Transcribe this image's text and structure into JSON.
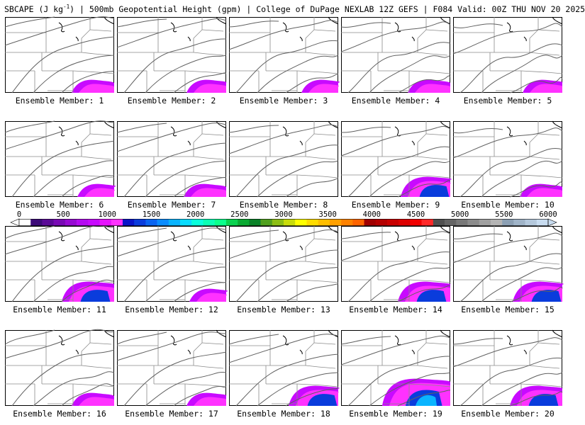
{
  "header": {
    "title_part1": "SBCAPE (J kg",
    "title_sup": "-1",
    "title_part2": ") | 500mb Geopotential Height (gpm) | College of DuPage NEXLAB 12Z GEFS | F084 Valid: 00Z THU NOV 20 2025"
  },
  "label_prefix": "Ensemble Member: ",
  "members": [
    {
      "id": "1",
      "cape": "weak"
    },
    {
      "id": "2",
      "cape": "weak"
    },
    {
      "id": "3",
      "cape": "weak"
    },
    {
      "id": "4",
      "cape": "weak"
    },
    {
      "id": "5",
      "cape": "weak"
    },
    {
      "id": "6",
      "cape": "weak"
    },
    {
      "id": "7",
      "cape": "weak"
    },
    {
      "id": "8",
      "cape": "none"
    },
    {
      "id": "9",
      "cape": "moderate"
    },
    {
      "id": "10",
      "cape": "weak"
    },
    {
      "id": "11",
      "cape": "moderate"
    },
    {
      "id": "12",
      "cape": "weak"
    },
    {
      "id": "13",
      "cape": "none"
    },
    {
      "id": "14",
      "cape": "moderate"
    },
    {
      "id": "15",
      "cape": "moderate"
    },
    {
      "id": "16",
      "cape": "weak"
    },
    {
      "id": "17",
      "cape": "weak"
    },
    {
      "id": "18",
      "cape": "moderate"
    },
    {
      "id": "19",
      "cape": "strong"
    },
    {
      "id": "20",
      "cape": "moderate"
    }
  ],
  "colorbar": {
    "labels": [
      "0",
      "500",
      "1000",
      "1500",
      "2000",
      "2500",
      "3000",
      "3500",
      "4000",
      "4500",
      "5000",
      "5500",
      "6000"
    ],
    "colors": [
      "#ffffff",
      "#3c0a78",
      "#5a0a96",
      "#780ab4",
      "#960ad2",
      "#b40af0",
      "#c80aff",
      "#e614ff",
      "#ff32ff",
      "#0a14c8",
      "#0a3cdc",
      "#0a64f0",
      "#0a8cff",
      "#0ab4ff",
      "#0adcff",
      "#0affdc",
      "#0affb4",
      "#0aff8c",
      "#0ad250",
      "#0aaa32",
      "#0a8228",
      "#50a01e",
      "#8cbe14",
      "#c8dc0a",
      "#ffff00",
      "#ffdc00",
      "#ffbe00",
      "#ffa000",
      "#ff8200",
      "#ff6400",
      "#a00000",
      "#b40000",
      "#c80000",
      "#dc0000",
      "#f00000",
      "#ff2828",
      "#505050",
      "#646464",
      "#787878",
      "#8c8c8c",
      "#a0a0a0",
      "#b4b4b4",
      "#8ca0b4",
      "#a0b4c8",
      "#b4c8dc",
      "#c8dcf0"
    ]
  },
  "colors": {
    "contour": "#606060",
    "boundary": "#8a8a8a",
    "coast": "#000000"
  }
}
